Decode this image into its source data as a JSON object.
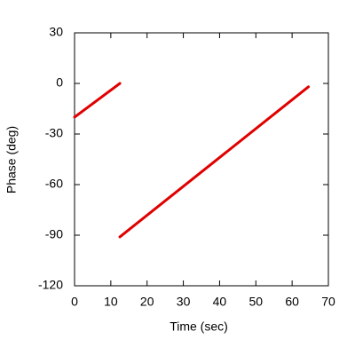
{
  "chart_data": {
    "type": "line",
    "x_label": "Time (sec)",
    "y_label": "Phase (deg)",
    "x": [
      0,
      12.5,
      12.5,
      12.5,
      64.5
    ],
    "series": [
      {
        "color": "#e00000",
        "values": [
          -20,
          0,
          null,
          -91,
          -2
        ]
      }
    ],
    "xlim": [
      0,
      70
    ],
    "xticks": [
      0,
      10,
      20,
      30,
      40,
      50,
      60,
      70
    ],
    "ylim": [
      -120,
      30
    ],
    "yticks": [
      -120,
      -90,
      -60,
      -30,
      0,
      30
    ],
    "grid": false
  }
}
